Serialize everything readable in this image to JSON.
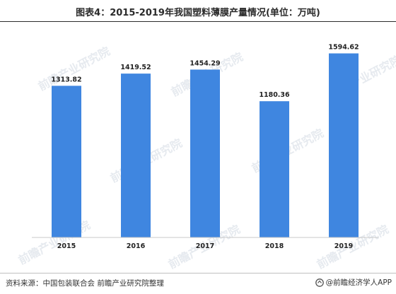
{
  "title": "图表4：2015-2019年我国塑料薄膜产量情况(单位：万吨)",
  "source": "资料来源：中国包装联合会 前瞻产业研究院整理",
  "brand": "@前瞻经济学人APP",
  "watermark_text": "前瞻产业研究院",
  "colors": {
    "bar": "#3f86e0",
    "axis": "#c8c8c8",
    "text": "#222222"
  },
  "chart_data": {
    "type": "bar",
    "title": "图表4：2015-2019年我国塑料薄膜产量情况(单位：万吨)",
    "categories": [
      "2015",
      "2016",
      "2017",
      "2018",
      "2019"
    ],
    "values": [
      1313.82,
      1419.52,
      1454.29,
      1180.36,
      1594.62
    ],
    "value_labels": [
      "1313.82",
      "1419.52",
      "1454.29",
      "1180.36",
      "1594.62"
    ],
    "ylim": [
      0,
      1800
    ],
    "xlabel": "",
    "ylabel": "",
    "grid": false,
    "legend": "none"
  }
}
